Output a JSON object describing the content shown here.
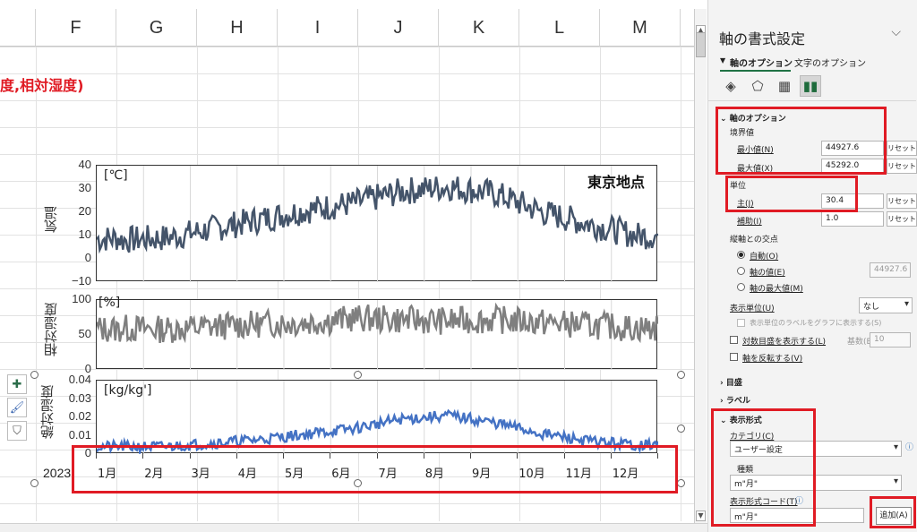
{
  "columns": [
    "F",
    "G",
    "H",
    "I",
    "J",
    "K",
    "L",
    "M"
  ],
  "sheet_title": "度,相対湿度)",
  "year_label": "2023",
  "chart": {
    "location_label": "東京地点",
    "temp": {
      "ylabel": "気温",
      "unit": "[℃]",
      "ticks": [
        "40",
        "30",
        "20",
        "10",
        "0",
        "−10"
      ]
    },
    "rh": {
      "ylabel": "相対湿度",
      "unit": "[%]",
      "ticks": [
        "100",
        "50",
        "0"
      ]
    },
    "ah": {
      "ylabel": "絶対湿度",
      "unit": "[kg/kg']",
      "ticks": [
        "0.04",
        "0.03",
        "0.02",
        "0.01",
        "0"
      ]
    },
    "months": [
      "1月",
      "2月",
      "3月",
      "4月",
      "5月",
      "6月",
      "7月",
      "8月",
      "9月",
      "10月",
      "11月",
      "12月"
    ]
  },
  "chart_data": [
    {
      "type": "line",
      "ylabel": "気温",
      "ylim": [
        -10,
        40
      ],
      "x": [
        "1月",
        "2月",
        "3月",
        "4月",
        "5月",
        "6月",
        "7月",
        "8月",
        "9月",
        "10月",
        "11月",
        "12月"
      ],
      "series": [
        {
          "values": [
            8,
            9,
            13,
            17,
            21,
            24,
            29,
            31,
            28,
            20,
            15,
            10
          ]
        }
      ],
      "color": "#44546a"
    },
    {
      "type": "line",
      "ylabel": "相対湿度",
      "ylim": [
        0,
        100
      ],
      "x": [
        "1月",
        "2月",
        "3月",
        "4月",
        "5月",
        "6月",
        "7月",
        "8月",
        "9月",
        "10月",
        "11月",
        "12月"
      ],
      "series": [
        {
          "values": [
            60,
            58,
            62,
            66,
            68,
            74,
            72,
            70,
            72,
            68,
            64,
            60
          ]
        }
      ],
      "color": "#7f7f7f"
    },
    {
      "type": "line",
      "ylabel": "絶対湿度",
      "ylim": [
        0,
        0.04
      ],
      "x": [
        "1月",
        "2月",
        "3月",
        "4月",
        "5月",
        "6月",
        "7月",
        "8月",
        "9月",
        "10月",
        "11月",
        "12月"
      ],
      "series": [
        {
          "values": [
            0.004,
            0.004,
            0.006,
            0.008,
            0.011,
            0.014,
            0.019,
            0.021,
            0.017,
            0.011,
            0.007,
            0.005
          ]
        }
      ],
      "color": "#4472c4"
    }
  ],
  "pane": {
    "title": "軸の書式設定",
    "tab_axis": "軸のオプション",
    "tab_text": "文字のオプション",
    "section_axis": "軸のオプション",
    "bounds": "境界値",
    "min_label": "最小値(N)",
    "min_value": "44927.6",
    "max_label": "最大値(X)",
    "max_value": "45292.0",
    "reset": "リセット",
    "units": "単位",
    "major_label": "主(J)",
    "major_value": "30.4",
    "minor_label": "補助(I)",
    "minor_value": "1.0",
    "cross": "縦軸との交点",
    "radio_auto": "自動(O)",
    "radio_value": "軸の値(E)",
    "radio_value_input": "44927.6",
    "radio_max": "軸の最大値(M)",
    "display_units": "表示単位(U)",
    "display_units_value": "なし",
    "show_units_label": "表示単位のラベルをグラフに表示する(S)",
    "log_scale": "対数目盛を表示する(L)",
    "base": "基数(B)",
    "base_value": "10",
    "reverse": "軸を反転する(V)",
    "ticks": "目盛",
    "labels": "ラベル",
    "number_format": "表示形式",
    "category": "カテゴリ(C)",
    "category_value": "ユーザー設定",
    "kind": "種類",
    "kind_value": "m\"月\"",
    "format_code": "表示形式コード(T)",
    "format_code_value": "m\"月\"",
    "add": "追加(A)"
  }
}
